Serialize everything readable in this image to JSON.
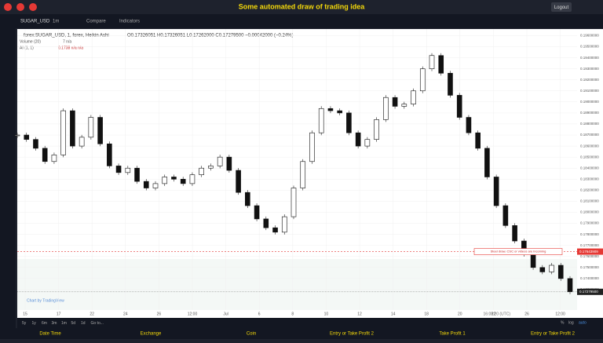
{
  "header": {
    "title": "Some automated draw of trading idea",
    "logout": "Logout"
  },
  "toolbar": {
    "symbol": "SUGAR_USD",
    "interval": "1m",
    "compare": "Compare",
    "indicators": "Indicators"
  },
  "legend": {
    "main": "forex:SUGAR_USD, 1, forex, Heikin Ashi",
    "ohlc": "O0.17326051 H0.17326051 L0.17262000 C0.17279500 −0.00042000 (−0.24%)",
    "volume": "Volume (20)",
    "volume_value": "7 n/a",
    "ai": "AI (1, 1)",
    "ai_value": "0.1738 n/a n/a"
  },
  "chart": {
    "closes": [
      0.187,
      0.1866,
      0.1858,
      0.1846,
      0.1852,
      0.1892,
      0.186,
      0.1868,
      0.1886,
      0.1862,
      0.1842,
      0.1836,
      0.184,
      0.1828,
      0.1822,
      0.1826,
      0.1832,
      0.183,
      0.1826,
      0.1834,
      0.184,
      0.1842,
      0.185,
      0.1838,
      0.1818,
      0.1806,
      0.1794,
      0.1786,
      0.1782,
      0.1796,
      0.1822,
      0.1846,
      0.1872,
      0.1894,
      0.1892,
      0.189,
      0.1872,
      0.186,
      0.1866,
      0.1884,
      0.1904,
      0.1896,
      0.1898,
      0.191,
      0.193,
      0.1942,
      0.1926,
      0.1906,
      0.1886,
      0.1872,
      0.1858,
      0.1832,
      0.1806,
      0.1788,
      0.1774,
      0.1762,
      0.175,
      0.1746,
      0.1752,
      0.174,
      0.1728
    ],
    "ylim": [
      0.1966,
      0.172
    ],
    "yticks": [
      {
        "value": 0.196,
        "label": "0.19600000"
      },
      {
        "value": 0.195,
        "label": "0.19500000"
      },
      {
        "value": 0.194,
        "label": "0.19400000"
      },
      {
        "value": 0.193,
        "label": "0.19300000"
      },
      {
        "value": 0.192,
        "label": "0.19200000"
      },
      {
        "value": 0.191,
        "label": "0.19100000"
      },
      {
        "value": 0.19,
        "label": "0.19000000"
      },
      {
        "value": 0.189,
        "label": "0.18900000"
      },
      {
        "value": 0.188,
        "label": "0.18800000"
      },
      {
        "value": 0.187,
        "label": "0.18700000"
      },
      {
        "value": 0.186,
        "label": "0.18600000"
      },
      {
        "value": 0.185,
        "label": "0.18500000"
      },
      {
        "value": 0.184,
        "label": "0.18400000"
      },
      {
        "value": 0.183,
        "label": "0.18300000"
      },
      {
        "value": 0.182,
        "label": "0.18200000"
      },
      {
        "value": 0.181,
        "label": "0.18100000"
      },
      {
        "value": 0.18,
        "label": "0.18000000"
      },
      {
        "value": 0.179,
        "label": "0.17900000"
      },
      {
        "value": 0.178,
        "label": "0.17800000"
      },
      {
        "value": 0.177,
        "label": "0.17700000"
      },
      {
        "value": 0.176,
        "label": "0.17600000"
      },
      {
        "value": 0.175,
        "label": "0.17500000"
      },
      {
        "value": 0.174,
        "label": "0.17400000"
      },
      {
        "value": 0.173,
        "label": "0.17300000"
      }
    ],
    "idea_line": {
      "value": 0.17643909,
      "label": "0.17643909"
    },
    "current": {
      "value": 0.172795,
      "label": "0.17279500"
    },
    "annotation": "Steel draw, CSC or videos are incoming",
    "watermark": "Chart by TradingView",
    "xticks": [
      "15",
      "17",
      "22",
      "24",
      "26",
      "12:00",
      "Jul",
      "6",
      "8",
      "10",
      "12",
      "14",
      "18",
      "20",
      "22",
      "26",
      "12:00"
    ]
  },
  "bottom": {
    "ranges": [
      "5y",
      "1y",
      "6m",
      "3m",
      "1m",
      "5d",
      "1d",
      "Go to..."
    ],
    "time": "16:09:20 (UTC)",
    "percent": "%",
    "log": "log",
    "auto": "auto"
  },
  "footer": [
    "Date Time",
    "Exchange",
    "Coin",
    "Entry or Take Profit 2",
    "Take Profit 1",
    "Entry or Take Profit 2"
  ]
}
